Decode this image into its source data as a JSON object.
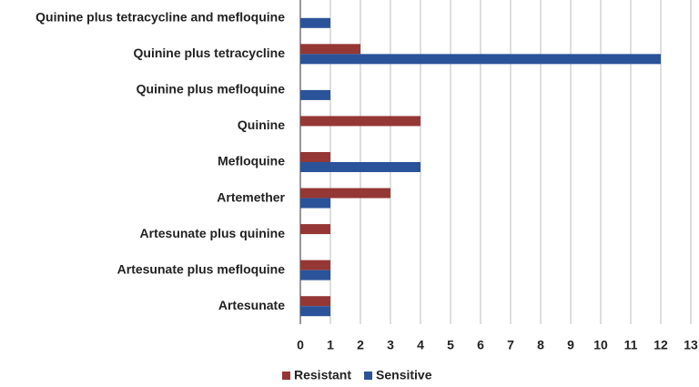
{
  "chart_data": {
    "type": "barh",
    "categories": [
      "Quinine plus tetracycline and mefloquine",
      "Quinine plus tetracycline",
      "Quinine plus mefloquine",
      "Quinine",
      "Mefloquine",
      "Artemether",
      "Artesunate plus quinine",
      "Artesunate plus mefloquine",
      "Artesunate"
    ],
    "series": [
      {
        "name": "Resistant",
        "color": "#953735",
        "values": [
          0,
          2,
          0,
          4,
          1,
          3,
          1,
          1,
          1
        ]
      },
      {
        "name": "Sensitive",
        "color": "#2b539a",
        "values": [
          1,
          12,
          1,
          0,
          4,
          1,
          0,
          1,
          1
        ]
      }
    ],
    "xlim": [
      0,
      13
    ],
    "xticks": [
      0,
      1,
      2,
      3,
      4,
      5,
      6,
      7,
      8,
      9,
      10,
      11,
      12,
      13
    ],
    "grid": true,
    "legend": "bottom"
  }
}
